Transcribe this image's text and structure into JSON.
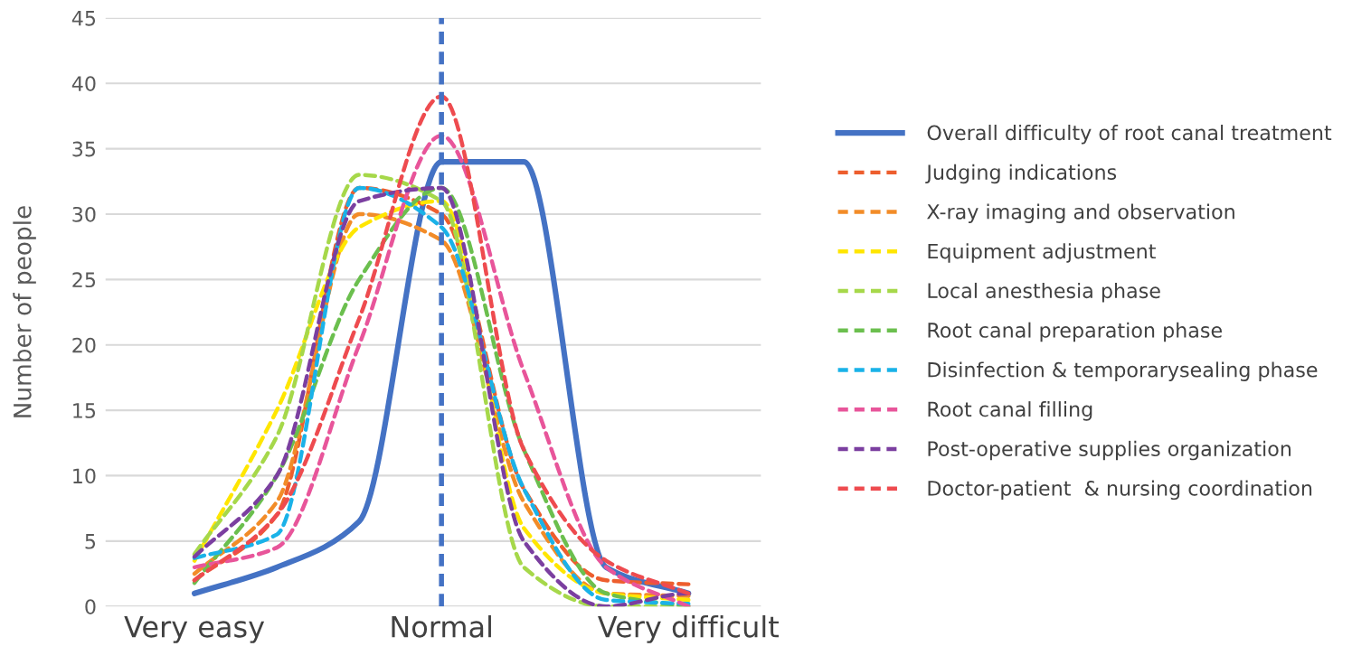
{
  "chart_data": {
    "type": "line",
    "ylabel": "Number of people",
    "categories": [
      "Very easy",
      null,
      null,
      "Normal",
      null,
      null,
      "Very difficult"
    ],
    "ylim": [
      0,
      45
    ],
    "yticks": [
      0,
      5,
      10,
      15,
      20,
      25,
      30,
      35,
      40,
      45
    ],
    "grid": "y",
    "legend": "right",
    "marker": "none",
    "ref_lines": [
      {
        "axis": "x",
        "value": "Normal",
        "color": "#4472c4",
        "line_style": "dashed"
      }
    ],
    "series": [
      {
        "name": "Overall difficulty of root canal treatment",
        "color": "#4472c4",
        "line_style": "solid",
        "values": [
          1,
          3,
          6.5,
          34,
          34,
          3,
          1
        ]
      },
      {
        "name": "Judging indications",
        "color": "#ed5e2e",
        "line_style": "dashed",
        "values": [
          2,
          7,
          32,
          30,
          9,
          2,
          1.7
        ]
      },
      {
        "name": "X-ray imaging and observation",
        "color": "#f28c28",
        "line_style": "dashed",
        "values": [
          2.5,
          8,
          30,
          28,
          8,
          1,
          0.8
        ]
      },
      {
        "name": "Equipment adjustment",
        "color": "#ffe600",
        "line_style": "dashed",
        "values": [
          3.5,
          15,
          29,
          31,
          6,
          1,
          0.5
        ]
      },
      {
        "name": "Local anesthesia phase",
        "color": "#a6d84a",
        "line_style": "dashed",
        "values": [
          4,
          13,
          33,
          31,
          3,
          0,
          0
        ]
      },
      {
        "name": "Root canal preparation phase",
        "color": "#6bbf4e",
        "line_style": "dashed",
        "values": [
          1.8,
          10,
          25,
          32,
          12,
          1,
          0
        ]
      },
      {
        "name": "Disinfection & temporarysealing phase",
        "color": "#1ab2e8",
        "line_style": "dashed",
        "values": [
          3.7,
          5.5,
          32,
          29,
          9,
          0.5,
          0.2
        ]
      },
      {
        "name": "Root canal filling",
        "color": "#e8559a",
        "line_style": "dashed",
        "values": [
          3,
          4.5,
          20,
          36,
          18,
          3,
          0
        ]
      },
      {
        "name": "Post-operative supplies organization",
        "color": "#7b3fa0",
        "line_style": "dashed",
        "values": [
          3.8,
          10,
          31,
          32,
          5,
          0,
          1
        ]
      },
      {
        "name": "Doctor-patient  & nursing coordination",
        "color": "#ee4b4f",
        "line_style": "dashed",
        "values": [
          2,
          7,
          22,
          39,
          12,
          3.5,
          1
        ]
      }
    ]
  }
}
